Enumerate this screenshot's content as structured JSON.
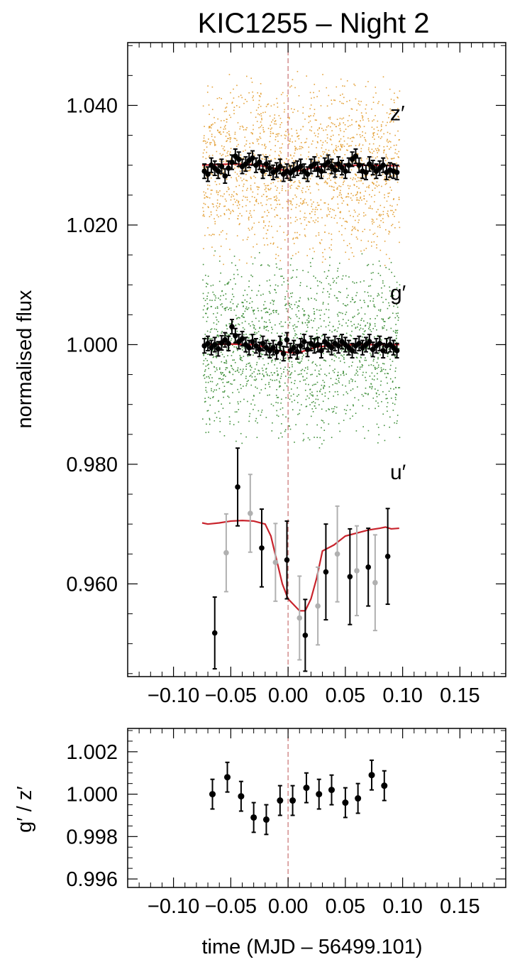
{
  "chart_data": [
    {
      "type": "scatter",
      "title": "KIC1255 – Night 2",
      "xlabel": "",
      "ylabel": "normalised flux",
      "xlim": [
        -0.14,
        0.19
      ],
      "ylim": [
        0.9445,
        1.0505
      ],
      "x_ticks": [
        -0.1,
        -0.05,
        0.0,
        0.05,
        0.1,
        0.15
      ],
      "x_tick_labels": [
        "−0.10",
        "−0.05",
        "0.00",
        "0.05",
        "0.10",
        "0.15"
      ],
      "y_ticks": [
        0.96,
        0.98,
        1.0,
        1.02,
        1.04
      ],
      "y_tick_labels": [
        "0.960",
        "0.980",
        "1.000",
        "1.020",
        "1.040"
      ],
      "vline_x": 0.0,
      "band_labels": [
        {
          "text": "z′",
          "y": 1.0375
        },
        {
          "text": "g′",
          "y": 1.0075
        },
        {
          "text": "u′",
          "y": 0.9775
        }
      ],
      "raw_points": [
        {
          "band": "z′",
          "center": 1.0295,
          "scatter": 0.017,
          "x_range": [
            -0.075,
            0.097
          ],
          "color": "#e4a23a"
        },
        {
          "band": "g′",
          "center": 0.9995,
          "scatter": 0.017,
          "x_range": [
            -0.075,
            0.097
          ],
          "color": "#3f8f3a"
        }
      ],
      "series": [
        {
          "name": "z′ binned",
          "color": "#000000",
          "x": [
            -0.073,
            -0.07,
            -0.067,
            -0.064,
            -0.061,
            -0.058,
            -0.055,
            -0.052,
            -0.049,
            -0.046,
            -0.043,
            -0.04,
            -0.037,
            -0.034,
            -0.031,
            -0.028,
            -0.025,
            -0.022,
            -0.019,
            -0.016,
            -0.013,
            -0.01,
            -0.007,
            -0.004,
            -0.001,
            0.002,
            0.005,
            0.008,
            0.011,
            0.014,
            0.017,
            0.02,
            0.023,
            0.026,
            0.029,
            0.032,
            0.035,
            0.038,
            0.041,
            0.044,
            0.047,
            0.05,
            0.053,
            0.056,
            0.059,
            0.062,
            0.065,
            0.068,
            0.071,
            0.074,
            0.077,
            0.08,
            0.083,
            0.086,
            0.089,
            0.092,
            0.095
          ],
          "y": [
            1.029,
            1.0285,
            1.03,
            1.0295,
            1.029,
            1.0298,
            1.0282,
            1.0295,
            1.0305,
            1.0315,
            1.031,
            1.0298,
            1.0302,
            1.0308,
            1.0312,
            1.03,
            1.0305,
            1.029,
            1.0302,
            1.0295,
            1.0288,
            1.0292,
            1.0298,
            1.0285,
            1.029,
            1.0287,
            1.0292,
            1.0295,
            1.0298,
            1.029,
            1.0285,
            1.0298,
            1.0302,
            1.0293,
            1.029,
            1.03,
            1.0305,
            1.0298,
            1.0292,
            1.0302,
            1.0296,
            1.029,
            1.03,
            1.031,
            1.0315,
            1.03,
            1.029,
            1.0288,
            1.0302,
            1.0296,
            1.029,
            1.0295,
            1.03,
            1.0288,
            1.0292,
            1.029,
            1.0288
          ],
          "yerr": 0.0012
        },
        {
          "name": "z′ model",
          "color": "#c8232c",
          "x": [
            -0.075,
            -0.05,
            -0.03,
            -0.02,
            -0.01,
            0.0,
            0.01,
            0.02,
            0.03,
            0.06,
            0.097
          ],
          "y": [
            1.03,
            1.0302,
            1.0301,
            1.0298,
            1.0294,
            1.029,
            1.0291,
            1.0295,
            1.0298,
            1.03,
            1.0299
          ]
        },
        {
          "name": "g′ binned",
          "color": "#000000",
          "x": [
            -0.073,
            -0.07,
            -0.067,
            -0.064,
            -0.061,
            -0.058,
            -0.055,
            -0.052,
            -0.049,
            -0.046,
            -0.043,
            -0.04,
            -0.037,
            -0.034,
            -0.031,
            -0.028,
            -0.025,
            -0.022,
            -0.019,
            -0.016,
            -0.013,
            -0.01,
            -0.007,
            -0.004,
            -0.001,
            0.002,
            0.005,
            0.008,
            0.011,
            0.014,
            0.017,
            0.02,
            0.023,
            0.026,
            0.029,
            0.032,
            0.035,
            0.038,
            0.041,
            0.044,
            0.047,
            0.05,
            0.053,
            0.056,
            0.059,
            0.062,
            0.065,
            0.068,
            0.071,
            0.074,
            0.077,
            0.08,
            0.083,
            0.086,
            0.089,
            0.092,
            0.095
          ],
          "y": [
            0.9998,
            1.0002,
            0.9995,
            1.0,
            0.9993,
            1.0003,
            1.0008,
            1.0002,
            1.003,
            1.0015,
            1.0005,
            1.001,
            1.0,
            0.9995,
            1.0005,
            0.9998,
            0.9992,
            1.0002,
            0.9995,
            0.999,
            0.9995,
            0.9988,
            1.0002,
            0.9985,
            1.0008,
            0.999,
            0.9995,
            0.9988,
            0.9998,
            1.0005,
            0.9992,
            1.0002,
            0.9998,
            1.0,
            0.999,
            1.0005,
            1.0,
            0.9995,
            1.0002,
            0.9998,
            1.0005,
            1.0,
            0.9995,
            0.999,
            0.9998,
            1.0002,
            0.9995,
            1.0,
            1.0005,
            0.9992,
            0.9998,
            1.0002,
            0.999,
            0.9998,
            1.0,
            0.9995,
            0.999
          ],
          "yerr": 0.0012
        },
        {
          "name": "g′ model",
          "color": "#c8232c",
          "x": [
            -0.075,
            -0.05,
            -0.03,
            -0.02,
            -0.01,
            0.0,
            0.008,
            0.015,
            0.025,
            0.04,
            0.06,
            0.097
          ],
          "y": [
            1.0,
            1.0001,
            1.0,
            0.9996,
            0.999,
            0.9987,
            0.9986,
            0.999,
            0.9996,
            0.9999,
            1.0,
            1.0
          ]
        },
        {
          "name": "u′ binned (black)",
          "color": "#000000",
          "x": [
            -0.064,
            -0.044,
            -0.023,
            -0.001,
            0.015,
            0.033,
            0.054,
            0.07,
            0.087
          ],
          "y": [
            0.9518,
            0.9762,
            0.966,
            0.964,
            0.9514,
            0.962,
            0.9612,
            0.9628,
            0.9646
          ],
          "yerr": [
            0.006,
            0.0065,
            0.0065,
            0.0065,
            0.006,
            0.008,
            0.008,
            0.0065,
            0.008
          ]
        },
        {
          "name": "u′ binned (grey)",
          "color": "#b0b0b0",
          "x": [
            -0.054,
            -0.033,
            -0.011,
            0.01,
            0.026,
            0.043,
            0.06,
            0.076
          ],
          "y": [
            0.9652,
            0.9718,
            0.9636,
            0.9543,
            0.9563,
            0.965,
            0.9622,
            0.9602
          ],
          "yerr": [
            0.0065,
            0.0065,
            0.0065,
            0.007,
            0.0065,
            0.008,
            0.0075,
            0.008
          ]
        },
        {
          "name": "u′ model",
          "color": "#c8232c",
          "x": [
            -0.075,
            -0.07,
            -0.06,
            -0.05,
            -0.04,
            -0.03,
            -0.02,
            -0.015,
            -0.01,
            -0.005,
            0.0,
            0.005,
            0.01,
            0.015,
            0.02,
            0.025,
            0.03,
            0.04,
            0.05,
            0.06,
            0.07,
            0.08,
            0.085,
            0.09,
            0.097
          ],
          "y": [
            0.9702,
            0.97,
            0.9702,
            0.9705,
            0.9706,
            0.9705,
            0.97,
            0.968,
            0.964,
            0.96,
            0.9575,
            0.9565,
            0.9555,
            0.9555,
            0.9575,
            0.961,
            0.9655,
            0.9665,
            0.968,
            0.9685,
            0.969,
            0.9693,
            0.9695,
            0.9692,
            0.9693
          ]
        }
      ]
    },
    {
      "type": "scatter",
      "title": "",
      "xlabel": "time (MJD – 56499.101)",
      "ylabel": "g′ / z′",
      "xlim": [
        -0.14,
        0.19
      ],
      "ylim": [
        0.9956,
        1.0031
      ],
      "x_ticks": [
        -0.1,
        -0.05,
        0.0,
        0.05,
        0.1,
        0.15
      ],
      "x_tick_labels": [
        "−0.10",
        "−0.05",
        "0.00",
        "0.05",
        "0.10",
        "0.15"
      ],
      "y_ticks": [
        0.996,
        0.998,
        1.0,
        1.002
      ],
      "y_tick_labels": [
        "0.996",
        "0.998",
        "1.000",
        "1.002"
      ],
      "vline_x": 0.0,
      "series": [
        {
          "name": "g′/z′",
          "color": "#000000",
          "x": [
            -0.066,
            -0.053,
            -0.041,
            -0.03,
            -0.019,
            -0.007,
            0.004,
            0.016,
            0.027,
            0.038,
            0.05,
            0.061,
            0.073,
            0.084
          ],
          "y": [
            1.0,
            1.0008,
            0.9999,
            0.9989,
            0.9988,
            0.9997,
            0.9997,
            1.0003,
            1.0,
            1.0002,
            0.9996,
            0.9998,
            1.0009,
            1.0004
          ],
          "yerr": 0.0007
        }
      ]
    }
  ]
}
